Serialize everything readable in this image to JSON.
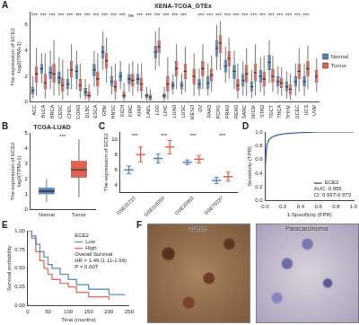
{
  "chart_data": [
    {
      "panel": "A",
      "type": "box",
      "title": "XENA-TCGA_GTEx",
      "y_label": [
        "The expression of ECE2",
        "log2(TPM+1)"
      ],
      "categories": [
        "ACC",
        "BLCA",
        "BRCA",
        "CESC",
        "CHOL",
        "COAD",
        "DLBC",
        "ESCA",
        "GBM",
        "HNSC",
        "KICH",
        "KIRC",
        "KIRP",
        "LAML",
        "LGG",
        "LIHC",
        "LUAD",
        "LUSC",
        "MESO",
        "OV",
        "PAAD",
        "PCPG",
        "PRAD",
        "READ",
        "SARC",
        "SKCM",
        "STAD",
        "TGCT",
        "THCA",
        "THYM",
        "UCEC",
        "UCS",
        "UVM"
      ],
      "series": [
        {
          "name": "Normal",
          "color": "#4f81bd",
          "values": [
            [
              0.3,
              0.6,
              0.9,
              1.2,
              2.0
            ],
            [
              1.5,
              2.2,
              2.6,
              3.0,
              3.8
            ],
            [
              1.0,
              1.8,
              2.3,
              2.8,
              4.0
            ],
            [
              0.5,
              1.4,
              1.9,
              2.4,
              3.5
            ],
            [
              0.5,
              1.0,
              1.4,
              1.8,
              2.6
            ],
            [
              1.0,
              1.8,
              2.4,
              2.9,
              4.0
            ],
            [
              0.2,
              0.5,
              0.8,
              1.1,
              1.8
            ],
            [
              1.2,
              2.0,
              2.5,
              3.0,
              4.0
            ],
            [
              2.5,
              3.4,
              3.9,
              4.4,
              5.5
            ],
            [
              0.6,
              1.2,
              1.6,
              2.0,
              2.8
            ],
            [
              1.0,
              1.6,
              2.0,
              2.4,
              3.2
            ],
            [
              0.8,
              1.4,
              1.8,
              2.2,
              3.0
            ],
            [
              0.8,
              1.4,
              1.8,
              2.2,
              3.0
            ],
            [
              0.1,
              0.3,
              0.5,
              0.7,
              1.2
            ],
            [
              2.5,
              3.4,
              3.9,
              4.4,
              5.5
            ],
            [
              0.1,
              0.3,
              0.5,
              0.7,
              1.2
            ],
            [
              0.6,
              1.0,
              1.3,
              1.6,
              2.2
            ],
            [
              0.6,
              1.0,
              1.3,
              1.6,
              2.2
            ],
            null,
            [
              0.5,
              1.0,
              1.4,
              1.8,
              2.6
            ],
            [
              0.5,
              1.0,
              1.5,
              2.0,
              3.0
            ],
            [
              2.5,
              3.5,
              4.2,
              4.8,
              6.0
            ],
            [
              1.5,
              2.3,
              2.8,
              3.3,
              4.3
            ],
            [
              1.0,
              1.8,
              2.4,
              2.9,
              4.0
            ],
            [
              0.5,
              1.2,
              1.7,
              2.2,
              3.2
            ],
            [
              0.3,
              0.8,
              1.2,
              1.6,
              2.5
            ],
            [
              0.8,
              1.5,
              2.0,
              2.5,
              3.5
            ],
            [
              1.5,
              2.5,
              3.1,
              3.7,
              4.8
            ],
            [
              0.6,
              1.2,
              1.6,
              2.0,
              2.8
            ],
            [
              0.3,
              0.8,
              1.2,
              1.6,
              2.4
            ],
            [
              0.5,
              1.2,
              1.6,
              2.0,
              3.0
            ],
            [
              0.5,
              1.2,
              1.6,
              2.0,
              3.0
            ],
            null
          ]
        },
        {
          "name": "Tumor",
          "color": "#e4604e",
          "values": [
            [
              0.5,
              1.5,
              2.2,
              2.8,
              4.2
            ],
            [
              0.3,
              1.0,
              1.5,
              2.2,
              3.8
            ],
            [
              0.5,
              1.5,
              2.2,
              3.0,
              4.8
            ],
            [
              0.2,
              0.8,
              1.3,
              1.9,
              3.3
            ],
            [
              1.0,
              1.9,
              2.5,
              3.2,
              4.5
            ],
            [
              0.3,
              0.9,
              1.3,
              1.8,
              3.0
            ],
            [
              0.1,
              0.3,
              0.5,
              0.8,
              1.4
            ],
            [
              0.5,
              1.2,
              1.8,
              2.4,
              3.8
            ],
            [
              1.5,
              2.6,
              3.2,
              3.8,
              5.0
            ],
            [
              0.2,
              0.8,
              1.2,
              1.7,
              3.0
            ],
            [
              0.1,
              0.3,
              0.5,
              0.8,
              1.5
            ],
            [
              0.5,
              1.2,
              1.7,
              2.2,
              3.2
            ],
            [
              0.3,
              0.9,
              1.4,
              1.9,
              3.0
            ],
            [
              0.1,
              0.2,
              0.4,
              0.6,
              1.0
            ],
            [
              2.8,
              3.8,
              4.3,
              4.8,
              5.8
            ],
            [
              0.2,
              0.8,
              1.4,
              2.0,
              3.5
            ],
            [
              1.0,
              2.0,
              2.6,
              3.2,
              4.5
            ],
            [
              0.8,
              1.8,
              2.4,
              3.0,
              4.3
            ],
            [
              0.5,
              1.4,
              2.0,
              2.6,
              3.8
            ],
            [
              1.0,
              2.0,
              2.6,
              3.2,
              4.5
            ],
            [
              0.8,
              1.6,
              2.1,
              2.6,
              3.6
            ],
            [
              2.5,
              3.8,
              4.6,
              5.2,
              6.3
            ],
            [
              1.8,
              2.8,
              3.4,
              4.0,
              5.0
            ],
            [
              0.3,
              0.9,
              1.3,
              1.8,
              3.0
            ],
            [
              0.5,
              1.5,
              2.2,
              2.9,
              4.2
            ],
            [
              0.5,
              1.6,
              2.3,
              3.0,
              4.5
            ],
            [
              0.5,
              1.2,
              1.8,
              2.4,
              3.6
            ],
            [
              0.8,
              1.5,
              2.0,
              2.6,
              3.6
            ],
            [
              0.5,
              1.1,
              1.5,
              1.9,
              2.7
            ],
            [
              0.2,
              0.6,
              1.0,
              1.4,
              2.2
            ],
            [
              0.8,
              1.8,
              2.4,
              3.0,
              4.2
            ],
            [
              1.0,
              2.0,
              2.6,
              3.2,
              4.4
            ],
            [
              0.8,
              1.5,
              2.0,
              2.5,
              3.4
            ]
          ]
        }
      ],
      "significance": [
        "***",
        "***",
        "***",
        "***",
        "***",
        "***",
        "***",
        "***",
        "***",
        "***",
        "***",
        "ns",
        "***",
        "***",
        "***",
        "***",
        "***",
        "***",
        null,
        "***",
        "***",
        "***",
        "***",
        "***",
        "***",
        "***",
        "***",
        "***",
        "***",
        "***",
        "***",
        "***",
        null
      ],
      "ylim": [
        0,
        7
      ],
      "yticks": [
        0,
        2,
        4,
        6
      ],
      "legend": "right",
      "grid": false
    },
    {
      "panel": "B",
      "type": "box",
      "title": "TCGA-LUAD",
      "y_label": [
        "The expression of ECE2",
        "log2(TPM+1)"
      ],
      "categories": [
        "Normal",
        "Tumor"
      ],
      "values": [
        [
          0.5,
          1.0,
          1.2,
          1.45,
          2.0
        ],
        [
          0.8,
          2.1,
          2.6,
          3.2,
          4.6
        ]
      ],
      "colors": [
        "#4f81bd",
        "#e4604e"
      ],
      "significance": "***",
      "ylim": [
        0,
        5
      ],
      "yticks": [
        0,
        1,
        2,
        3,
        4,
        5
      ],
      "grid": false
    },
    {
      "panel": "C",
      "type": "dot",
      "y_label": "The expression of ECE2",
      "categories": [
        "GSE31210",
        "GSE116959",
        "GSE32863",
        "GSE75037"
      ],
      "series": [
        {
          "name": "Normal",
          "color": "#4f81bd",
          "values": [
            6.0,
            7.5,
            7.0,
            4.6
          ],
          "sd": [
            0.5,
            0.6,
            0.3,
            0.4
          ]
        },
        {
          "name": "Tumor",
          "color": "#e4604e",
          "values": [
            8.0,
            9.0,
            7.4,
            5.1
          ],
          "sd": [
            1.0,
            0.9,
            0.5,
            0.6
          ]
        }
      ],
      "significance": [
        "***",
        "***",
        "***",
        "***"
      ],
      "ylim": [
        3,
        11
      ],
      "yticks": [
        4,
        6,
        8,
        10
      ],
      "grid": false
    },
    {
      "panel": "D",
      "type": "line",
      "x_label": "1-Specificity (FPR)",
      "y_label": "Sensitivity (TPR)",
      "x": [
        0,
        0,
        0.01,
        0.02,
        0.04,
        0.06,
        0.1,
        0.15,
        0.25,
        0.4,
        0.6,
        1
      ],
      "series": [
        {
          "name": "ECE2",
          "color": "#1f4e9c",
          "values": [
            0,
            0.5,
            0.7,
            0.82,
            0.88,
            0.91,
            0.94,
            0.96,
            0.98,
            0.99,
            1,
            1
          ]
        }
      ],
      "annotations": [
        "AUC: 0.955",
        "CI: 0.937-0.973"
      ],
      "xlim": [
        0,
        1
      ],
      "xticks": [
        {
          "value": 0,
          "label": "0.0"
        },
        {
          "value": 0.2,
          "label": "0.2"
        },
        {
          "value": 0.4,
          "label": "0.4"
        },
        {
          "value": 0.6,
          "label": "0.6"
        },
        {
          "value": 0.8,
          "label": "0.8"
        },
        {
          "value": 1,
          "label": "1.0"
        }
      ],
      "ylim": [
        0,
        1
      ],
      "yticks": [
        {
          "value": 0,
          "label": "0.0"
        },
        {
          "value": 0.2,
          "label": "0.2"
        },
        {
          "value": 0.4,
          "label": "0.4"
        },
        {
          "value": 0.6,
          "label": "0.6"
        },
        {
          "value": 0.8,
          "label": "0.8"
        },
        {
          "value": 1,
          "label": "1.0"
        }
      ],
      "legend": "bottom right",
      "grid": false
    },
    {
      "panel": "E",
      "type": "line",
      "line_style": "step",
      "x_label": "Time (months)",
      "y_label": "Survival probability",
      "legend_title": "ECE2",
      "series": [
        {
          "name": "Low",
          "color": "#4f81bd",
          "x": [
            0,
            10,
            20,
            30,
            40,
            50,
            60,
            80,
            100,
            120,
            150,
            200,
            240
          ],
          "values": [
            1,
            0.93,
            0.82,
            0.72,
            0.65,
            0.55,
            0.5,
            0.42,
            0.35,
            0.28,
            0.22,
            0.15,
            0.15
          ]
        },
        {
          "name": "High",
          "color": "#e4604e",
          "x": [
            0,
            10,
            20,
            30,
            40,
            50,
            60,
            80,
            100,
            120,
            150,
            200
          ],
          "values": [
            1,
            0.9,
            0.72,
            0.6,
            0.5,
            0.42,
            0.35,
            0.3,
            0.25,
            0.18,
            0.12,
            0.08
          ]
        }
      ],
      "annotations": [
        "Overall Survival",
        "HR = 1.49 (1.11-1.99)",
        "P = 0.007"
      ],
      "xlim": [
        0,
        250
      ],
      "xticks": [
        0,
        50,
        100,
        150,
        200,
        250
      ],
      "ylim": [
        0,
        1
      ],
      "yticks": [
        {
          "value": 0,
          "label": "0.00"
        },
        {
          "value": 0.25,
          "label": "0.25"
        },
        {
          "value": 0.5,
          "label": "0.50"
        },
        {
          "value": 0.75,
          "label": "0.75"
        },
        {
          "value": 1,
          "label": "1.00"
        }
      ],
      "legend": "top right",
      "grid": false
    },
    {
      "panel": "F",
      "type": "image",
      "images": [
        {
          "label": "Tumor"
        },
        {
          "label": "Paracarcinoma"
        }
      ]
    }
  ]
}
